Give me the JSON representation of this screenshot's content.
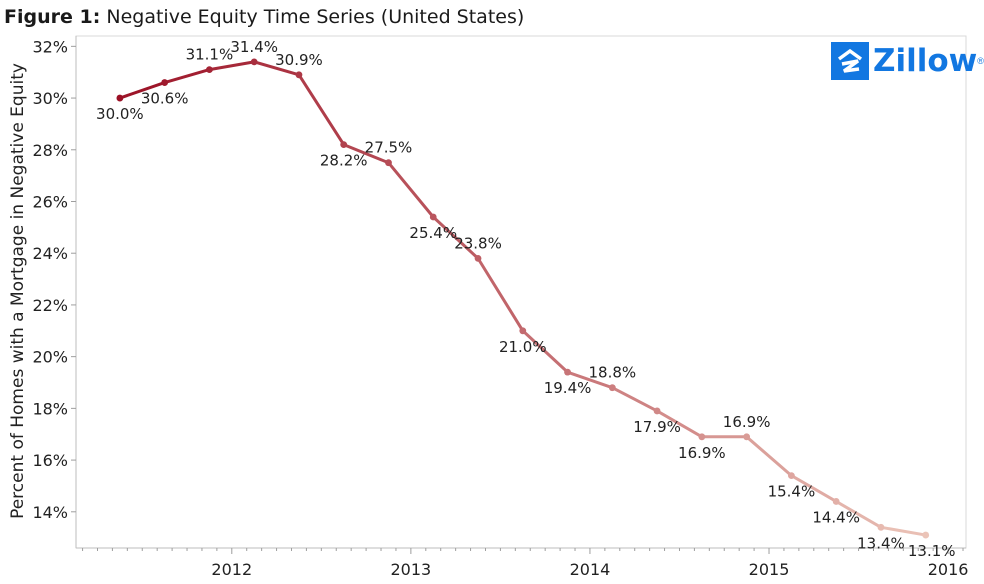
{
  "header": {
    "label": "Figure 1:",
    "text": "Negative Equity Time Series (United States)"
  },
  "logo": {
    "text": "Zillow",
    "mark": "®",
    "icon": "zillow-house-icon",
    "color": "#1277e1"
  },
  "chart_data": {
    "type": "line",
    "ylabel": "Percent of Homes with a Mortgage in Negative Equity",
    "ylim": [
      12.6,
      32.4
    ],
    "yticks": [
      14,
      16,
      18,
      20,
      22,
      24,
      26,
      28,
      30,
      32
    ],
    "ytick_labels": [
      "14%",
      "16%",
      "18%",
      "20%",
      "22%",
      "24%",
      "26%",
      "28%",
      "30%",
      "32%"
    ],
    "xlim": [
      2011.13,
      2016.1
    ],
    "xticks": [
      2012,
      2013,
      2014,
      2015,
      2016
    ],
    "xtick_labels": [
      "2012",
      "2013",
      "2014",
      "2015",
      "2016"
    ],
    "grid": false,
    "color_start": "#9b1025",
    "color_end": "#ebc4b8",
    "series": [
      {
        "x": [
          2011.375,
          2011.625,
          2011.875,
          2012.125,
          2012.375,
          2012.625,
          2012.875,
          2013.125,
          2013.375,
          2013.625,
          2013.875,
          2014.125,
          2014.375,
          2014.625,
          2014.875,
          2015.125,
          2015.375,
          2015.625,
          2015.875
        ],
        "values": [
          30.0,
          30.6,
          31.1,
          31.4,
          30.9,
          28.2,
          27.5,
          25.4,
          23.8,
          21.0,
          19.4,
          18.8,
          17.9,
          16.9,
          16.9,
          15.4,
          14.4,
          13.4,
          13.1
        ],
        "labels": [
          "30.0%",
          "30.6%",
          "31.1%",
          "31.4%",
          "30.9%",
          "28.2%",
          "27.5%",
          "25.4%",
          "23.8%",
          "21.0%",
          "19.4%",
          "18.8%",
          "17.9%",
          "16.9%",
          "16.9%",
          "15.4%",
          "14.4%",
          "13.4%",
          "13.1%"
        ],
        "label_positions": [
          "below",
          "below",
          "above",
          "above",
          "above",
          "below",
          "above",
          "below",
          "above",
          "below",
          "below",
          "above",
          "below",
          "below",
          "above",
          "below",
          "below",
          "below",
          "below"
        ]
      }
    ]
  }
}
